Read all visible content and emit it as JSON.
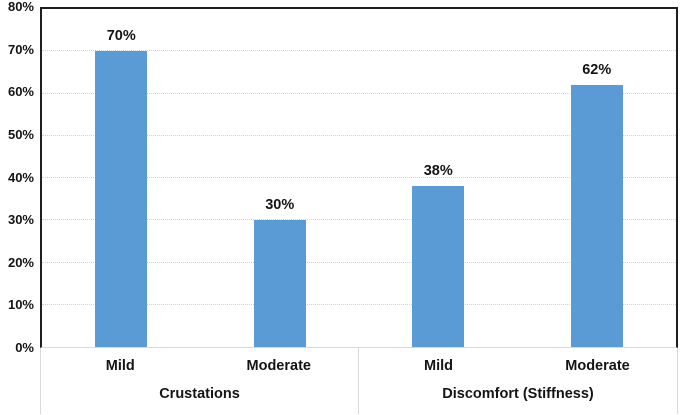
{
  "chart_data": {
    "type": "bar",
    "title": "",
    "xlabel": "",
    "ylabel": "",
    "groups": [
      {
        "label": "Crustations",
        "categories": [
          "Mild",
          "Moderate"
        ]
      },
      {
        "label": "Discomfort (Stiffness)",
        "categories": [
          "Mild",
          "Moderate"
        ]
      }
    ],
    "categories": [
      "Mild",
      "Moderate",
      "Mild",
      "Moderate"
    ],
    "values": [
      70,
      30,
      38,
      62
    ],
    "data_labels": [
      "70%",
      "30%",
      "38%",
      "62%"
    ],
    "ylim": [
      0,
      80
    ],
    "y_ticks": [
      "0%",
      "10%",
      "20%",
      "30%",
      "40%",
      "50%",
      "60%",
      "70%",
      "80%"
    ],
    "grid": true,
    "legend_position": "none",
    "bar_color": "#5B9BD5"
  },
  "colors": {
    "bar": "#5B9BD5",
    "axis_line": "#1f1f1f",
    "gridline": "#d2d2d2",
    "divider": "#d9d9d9",
    "text": "#141414",
    "background": "#ffffff"
  }
}
